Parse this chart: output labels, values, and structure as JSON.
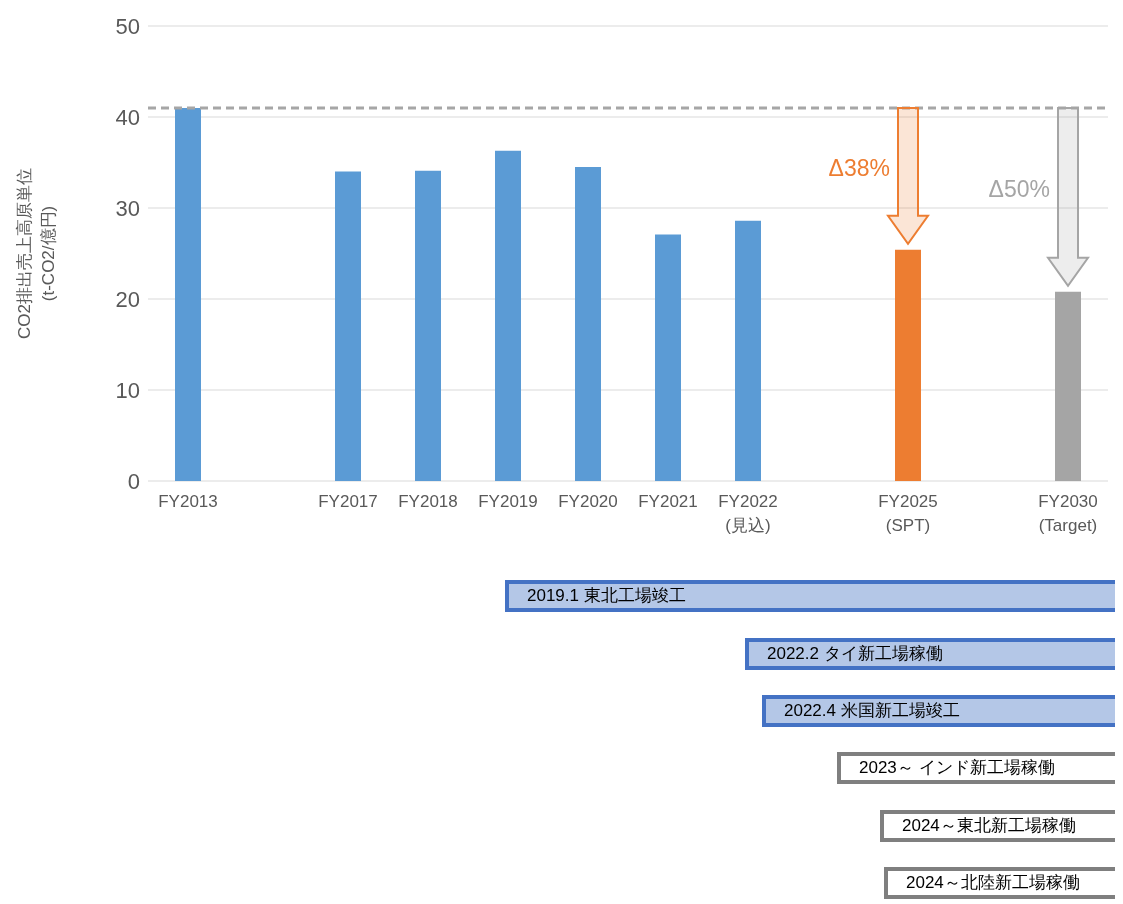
{
  "chart_data": {
    "type": "bar",
    "categories": [
      "FY2013",
      null,
      "FY2017",
      "FY2018",
      "FY2019",
      "FY2020",
      "FY2021",
      "FY2022\n(見込)",
      null,
      "FY2025\n(SPT)",
      null,
      "FY2030\n(Target)"
    ],
    "values": [
      41.0,
      null,
      34.0,
      34.1,
      36.3,
      34.5,
      27.1,
      28.6,
      null,
      25.4,
      null,
      20.8
    ],
    "colors": [
      "#5b9bd5",
      "#5b9bd5",
      "#5b9bd5",
      "#5b9bd5",
      "#5b9bd5",
      "#5b9bd5",
      "#5b9bd5",
      "#5b9bd5",
      "#5b9bd5",
      "#ed7d31",
      "#a5a5a5",
      "#a5a5a5"
    ],
    "ylabel": "CO2排出売上高原単位\n(t-CO2/億円)",
    "ylim": [
      0,
      50
    ],
    "yticks": [
      0,
      10,
      20,
      30,
      40,
      50
    ],
    "grid": "y",
    "ref_lines": [
      {
        "axis": "y",
        "value": 41,
        "color": "#a6a6a6",
        "line_style": "dashed"
      }
    ],
    "annotations": [
      "Δ38%",
      "Δ50%",
      "2019.1 東北工場竣工",
      "2022.2 タイ新工場稼働",
      "2022.4 米国新工場竣工",
      "2023～ インド新工場稼働",
      "2024～東北新工場稼働",
      "2024～北陸新工場稼働"
    ]
  }
}
